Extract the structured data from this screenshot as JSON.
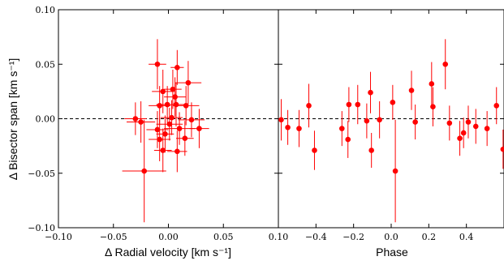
{
  "chart_data": [
    {
      "type": "scatter",
      "xlabel": "Δ Radial velocity [km s⁻¹]",
      "ylabel": "Δ Bisector span [km s⁻¹]",
      "xlim": [
        -0.1,
        0.1
      ],
      "ylim": [
        -0.1,
        0.1
      ],
      "xticks": [
        "−0.10",
        "−0.05",
        "0.00",
        "0.05",
        "0.10"
      ],
      "yticks": [
        "0.10",
        "0.05",
        "0.00",
        "−0.05",
        "−0.10"
      ],
      "reference_line": {
        "y": 0.0,
        "style": "dashed"
      },
      "color": "#ff0000",
      "points": [
        {
          "x": -0.01,
          "y": 0.05,
          "xerr": 0.008,
          "yerr": 0.023
        },
        {
          "x": 0.008,
          "y": 0.047,
          "xerr": 0.006,
          "yerr": 0.016
        },
        {
          "x": 0.018,
          "y": 0.033,
          "xerr": 0.012,
          "yerr": 0.02
        },
        {
          "x": -0.005,
          "y": 0.025,
          "xerr": 0.01,
          "yerr": 0.02
        },
        {
          "x": 0.004,
          "y": 0.027,
          "xerr": 0.008,
          "yerr": 0.018
        },
        {
          "x": 0.006,
          "y": 0.02,
          "xerr": 0.01,
          "yerr": 0.018
        },
        {
          "x": -0.008,
          "y": 0.012,
          "xerr": 0.01,
          "yerr": 0.018
        },
        {
          "x": -0.001,
          "y": 0.013,
          "xerr": 0.01,
          "yerr": 0.017
        },
        {
          "x": 0.007,
          "y": 0.013,
          "xerr": 0.009,
          "yerr": 0.02
        },
        {
          "x": 0.016,
          "y": 0.012,
          "xerr": 0.012,
          "yerr": 0.018
        },
        {
          "x": -0.03,
          "y": 0.0,
          "xerr": 0.01,
          "yerr": 0.015
        },
        {
          "x": -0.025,
          "y": -0.003,
          "xerr": 0.013,
          "yerr": 0.019
        },
        {
          "x": 0.003,
          "y": 0.001,
          "xerr": 0.01,
          "yerr": 0.016
        },
        {
          "x": 0.021,
          "y": -0.001,
          "xerr": 0.012,
          "yerr": 0.016
        },
        {
          "x": -0.01,
          "y": -0.01,
          "xerr": 0.01,
          "yerr": 0.017
        },
        {
          "x": 0.001,
          "y": -0.005,
          "xerr": 0.012,
          "yerr": 0.015
        },
        {
          "x": -0.003,
          "y": -0.014,
          "xerr": 0.008,
          "yerr": 0.017
        },
        {
          "x": 0.01,
          "y": -0.009,
          "xerr": 0.014,
          "yerr": 0.015
        },
        {
          "x": 0.028,
          "y": -0.009,
          "xerr": 0.009,
          "yerr": 0.018
        },
        {
          "x": -0.008,
          "y": -0.019,
          "xerr": 0.01,
          "yerr": 0.02
        },
        {
          "x": 0.015,
          "y": -0.018,
          "xerr": 0.008,
          "yerr": 0.016
        },
        {
          "x": -0.005,
          "y": -0.029,
          "xerr": 0.008,
          "yerr": 0.02
        },
        {
          "x": 0.008,
          "y": -0.03,
          "xerr": 0.009,
          "yerr": 0.019
        },
        {
          "x": -0.022,
          "y": -0.048,
          "xerr": 0.02,
          "yerr": 0.047
        }
      ]
    },
    {
      "type": "scatter",
      "xlabel": "Phase",
      "ylabel": "",
      "xlim": [
        -0.6,
        0.6
      ],
      "ylim": [
        -0.1,
        0.1
      ],
      "xticks": [
        "−0.4",
        "−0.2",
        "0.0",
        "0.2",
        "0.4"
      ],
      "reference_line": {
        "y": 0.0,
        "style": "dashed"
      },
      "color": "#ff0000",
      "points": [
        {
          "x": -0.585,
          "y": -0.001,
          "yerr": 0.019
        },
        {
          "x": -0.55,
          "y": -0.008,
          "yerr": 0.016
        },
        {
          "x": -0.49,
          "y": -0.009,
          "yerr": 0.017
        },
        {
          "x": -0.438,
          "y": 0.012,
          "yerr": 0.02
        },
        {
          "x": -0.408,
          "y": -0.029,
          "yerr": 0.018
        },
        {
          "x": -0.262,
          "y": -0.009,
          "yerr": 0.016
        },
        {
          "x": -0.23,
          "y": -0.019,
          "yerr": 0.017
        },
        {
          "x": -0.225,
          "y": 0.013,
          "yerr": 0.016
        },
        {
          "x": -0.178,
          "y": 0.013,
          "yerr": 0.018
        },
        {
          "x": -0.13,
          "y": -0.002,
          "yerr": 0.016
        },
        {
          "x": -0.11,
          "y": 0.024,
          "yerr": 0.019
        },
        {
          "x": -0.105,
          "y": -0.029,
          "yerr": 0.016
        },
        {
          "x": -0.062,
          "y": -0.001,
          "yerr": 0.017
        },
        {
          "x": 0.008,
          "y": 0.015,
          "yerr": 0.016
        },
        {
          "x": 0.022,
          "y": -0.048,
          "yerr": 0.047
        },
        {
          "x": 0.108,
          "y": 0.026,
          "yerr": 0.018
        },
        {
          "x": 0.128,
          "y": -0.003,
          "yerr": 0.016
        },
        {
          "x": 0.215,
          "y": 0.032,
          "yerr": 0.02
        },
        {
          "x": 0.222,
          "y": 0.011,
          "yerr": 0.018
        },
        {
          "x": 0.288,
          "y": 0.05,
          "yerr": 0.023
        },
        {
          "x": 0.31,
          "y": -0.004,
          "yerr": 0.016
        },
        {
          "x": 0.365,
          "y": -0.018,
          "yerr": 0.016
        },
        {
          "x": 0.385,
          "y": -0.013,
          "yerr": 0.014
        },
        {
          "x": 0.41,
          "y": -0.003,
          "yerr": 0.015
        },
        {
          "x": 0.45,
          "y": -0.007,
          "yerr": 0.016
        },
        {
          "x": 0.51,
          "y": -0.009,
          "yerr": 0.016
        },
        {
          "x": 0.56,
          "y": 0.012,
          "yerr": 0.017
        },
        {
          "x": 0.595,
          "y": -0.028,
          "yerr": 0.018
        }
      ]
    }
  ]
}
